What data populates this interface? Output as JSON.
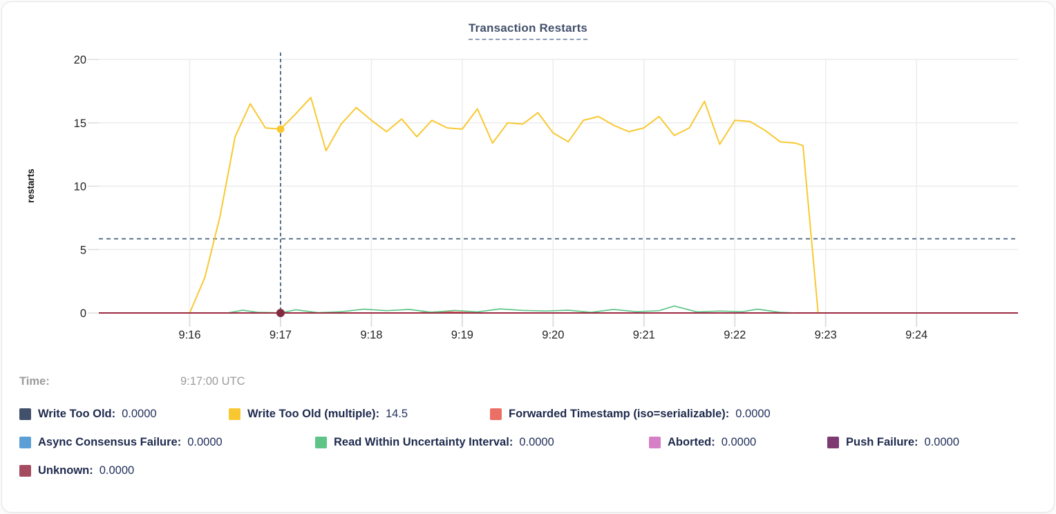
{
  "title": "Transaction Restarts",
  "hover": {
    "time_label": "Time:",
    "time_value": "9:17:00 UTC",
    "time": "9:17:00",
    "crosshair_y_value": 5.85,
    "dots": [
      {
        "series": "write_too_old_multiple",
        "value": 14.5
      },
      {
        "series": "unknown",
        "value": 0
      }
    ]
  },
  "colors": {
    "grid": "#ececec",
    "tick": "#dedede",
    "axis_text": "#242424",
    "crosshair": "#44607d",
    "title": "#42506b",
    "legend_text": "#1e2a4d"
  },
  "chart_data": {
    "type": "line",
    "title": "Transaction Restarts",
    "xlabel": "",
    "ylabel": "restarts",
    "ylim": [
      0,
      20
    ],
    "y_ticks": [
      0,
      5,
      10,
      15,
      20
    ],
    "x_domain": [
      "9:15:00",
      "9:25:07"
    ],
    "x_ticks": [
      "9:16",
      "9:17",
      "9:18",
      "9:19",
      "9:20",
      "9:21",
      "9:22",
      "9:23",
      "9:24"
    ],
    "grid": true,
    "legend_position": "bottom",
    "series": [
      {
        "key": "write_too_old",
        "name": "Write Too Old:",
        "legend_value": "0.0000",
        "color": "#41506b",
        "legend_row": 1,
        "z": 1,
        "width": 1.5,
        "points": [
          [
            "9:15:00",
            0
          ],
          [
            "9:25:07",
            0
          ]
        ]
      },
      {
        "key": "write_too_old_multiple",
        "name": "Write Too Old (multiple):",
        "legend_value": "14.5",
        "color": "#f9c831",
        "legend_row": 1,
        "z": 6,
        "width": 2,
        "points": [
          [
            "9:16:00",
            0
          ],
          [
            "9:16:10",
            2.8
          ],
          [
            "9:16:20",
            7.6
          ],
          [
            "9:16:30",
            13.9
          ],
          [
            "9:16:40",
            16.5
          ],
          [
            "9:16:50",
            14.6
          ],
          [
            "9:17:00",
            14.5
          ],
          [
            "9:17:10",
            15.7
          ],
          [
            "9:17:20",
            17.0
          ],
          [
            "9:17:30",
            12.8
          ],
          [
            "9:17:40",
            14.9
          ],
          [
            "9:17:50",
            16.2
          ],
          [
            "9:18:00",
            15.2
          ],
          [
            "9:18:10",
            14.3
          ],
          [
            "9:18:20",
            15.3
          ],
          [
            "9:18:30",
            13.9
          ],
          [
            "9:18:40",
            15.2
          ],
          [
            "9:18:50",
            14.6
          ],
          [
            "9:19:00",
            14.5
          ],
          [
            "9:19:10",
            16.1
          ],
          [
            "9:19:20",
            13.4
          ],
          [
            "9:19:30",
            15.0
          ],
          [
            "9:19:40",
            14.9
          ],
          [
            "9:19:50",
            15.8
          ],
          [
            "9:20:00",
            14.2
          ],
          [
            "9:20:10",
            13.5
          ],
          [
            "9:20:20",
            15.2
          ],
          [
            "9:20:30",
            15.5
          ],
          [
            "9:20:40",
            14.8
          ],
          [
            "9:20:50",
            14.3
          ],
          [
            "9:21:00",
            14.6
          ],
          [
            "9:21:10",
            15.5
          ],
          [
            "9:21:20",
            14.0
          ],
          [
            "9:21:30",
            14.6
          ],
          [
            "9:21:40",
            16.7
          ],
          [
            "9:21:50",
            13.3
          ],
          [
            "9:22:00",
            15.2
          ],
          [
            "9:22:10",
            15.1
          ],
          [
            "9:22:20",
            14.4
          ],
          [
            "9:22:30",
            13.5
          ],
          [
            "9:22:40",
            13.4
          ],
          [
            "9:22:45",
            13.2
          ],
          [
            "9:22:55",
            0
          ]
        ]
      },
      {
        "key": "forwarded_timestamp_iso_serializable",
        "name": "Forwarded Timestamp (iso=serializable):",
        "legend_value": "0.0000",
        "color": "#ec6f66",
        "legend_row": 1,
        "z": 2,
        "width": 1.8,
        "points": [
          [
            "9:15:00",
            0
          ],
          [
            "9:18:30",
            0
          ],
          [
            "9:18:45",
            0.1
          ],
          [
            "9:19:00",
            0.05
          ],
          [
            "9:19:10",
            0
          ],
          [
            "9:25:07",
            0
          ]
        ]
      },
      {
        "key": "async_consensus_failure",
        "name": "Async Consensus Failure:",
        "legend_value": "0.0000",
        "color": "#5b9fd6",
        "legend_row": 2,
        "z": 3,
        "width": 1.5,
        "points": [
          [
            "9:15:00",
            0
          ],
          [
            "9:25:07",
            0
          ]
        ]
      },
      {
        "key": "read_within_uncertainty_interval",
        "name": "Read Within Uncertainty Interval:",
        "legend_value": "0.0000",
        "color": "#5ec487",
        "legend_row": 2,
        "z": 7,
        "width": 1.7,
        "points": [
          [
            "9:16:25",
            0
          ],
          [
            "9:16:35",
            0.22
          ],
          [
            "9:16:45",
            0.05
          ],
          [
            "9:16:55",
            0.02
          ],
          [
            "9:17:00",
            0
          ],
          [
            "9:17:10",
            0.25
          ],
          [
            "9:17:25",
            0.02
          ],
          [
            "9:17:40",
            0.1
          ],
          [
            "9:17:55",
            0.3
          ],
          [
            "9:18:10",
            0.18
          ],
          [
            "9:18:25",
            0.28
          ],
          [
            "9:18:40",
            0.05
          ],
          [
            "9:18:55",
            0.2
          ],
          [
            "9:19:10",
            0.08
          ],
          [
            "9:19:25",
            0.32
          ],
          [
            "9:19:40",
            0.2
          ],
          [
            "9:19:55",
            0.15
          ],
          [
            "9:20:10",
            0.22
          ],
          [
            "9:20:25",
            0.05
          ],
          [
            "9:20:40",
            0.28
          ],
          [
            "9:20:55",
            0.1
          ],
          [
            "9:21:10",
            0.18
          ],
          [
            "9:21:20",
            0.55
          ],
          [
            "9:21:35",
            0.08
          ],
          [
            "9:21:50",
            0.15
          ],
          [
            "9:22:05",
            0.1
          ],
          [
            "9:22:15",
            0.3
          ],
          [
            "9:22:30",
            0.05
          ],
          [
            "9:22:40",
            0
          ]
        ]
      },
      {
        "key": "aborted",
        "name": "Aborted:",
        "legend_value": "0.0000",
        "color": "#d47fc6",
        "legend_row": 2,
        "z": 4,
        "width": 1.5,
        "points": [
          [
            "9:15:00",
            0
          ],
          [
            "9:25:07",
            0
          ]
        ]
      },
      {
        "key": "push_failure",
        "name": "Push Failure:",
        "legend_value": "0.0000",
        "color": "#7d3a70",
        "legend_row": 2,
        "z": 5,
        "width": 1.5,
        "points": [
          [
            "9:15:00",
            0
          ],
          [
            "9:25:07",
            0
          ]
        ]
      },
      {
        "key": "unknown",
        "name": "Unknown:",
        "legend_value": "0.0000",
        "color": "#a44b5f",
        "line_color": "#9b2135",
        "legend_row": 3,
        "z": 8,
        "width": 1.8,
        "points": [
          [
            "9:15:00",
            0
          ],
          [
            "9:25:07",
            0
          ]
        ]
      }
    ]
  }
}
